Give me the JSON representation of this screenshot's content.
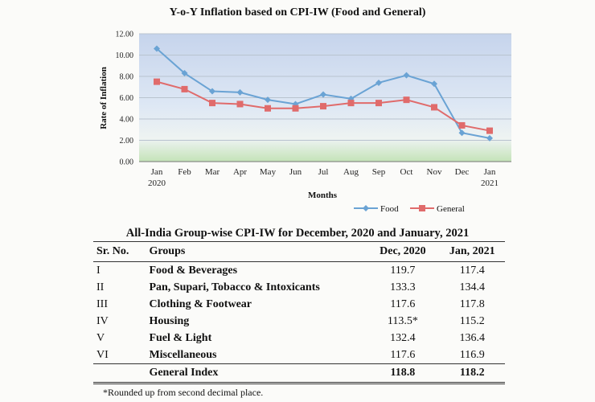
{
  "chart_data": {
    "type": "line",
    "title": "Y-o-Y Inflation based on CPI-IW (Food and General)",
    "xlabel": "Months",
    "ylabel": "Rate of Inflation",
    "categories": [
      "Jan\n2020",
      "Feb",
      "Mar",
      "Apr",
      "May",
      "Jun",
      "Jul",
      "Aug",
      "Sep",
      "Oct",
      "Nov",
      "Dec",
      "Jan\n2021"
    ],
    "ylim": [
      0,
      12
    ],
    "yticks": [
      "0.00",
      "2.00",
      "4.00",
      "6.00",
      "8.00",
      "10.00",
      "12.00"
    ],
    "series": [
      {
        "name": "Food",
        "color": "#6aa3d4",
        "marker": "diamond",
        "values": [
          10.6,
          8.3,
          6.6,
          6.5,
          5.8,
          5.4,
          6.3,
          5.9,
          7.4,
          8.1,
          7.3,
          2.7,
          2.2
        ]
      },
      {
        "name": "General",
        "color": "#e06b6b",
        "marker": "square",
        "values": [
          7.5,
          6.8,
          5.5,
          5.4,
          5.0,
          5.0,
          5.2,
          5.5,
          5.5,
          5.8,
          5.1,
          3.4,
          2.9
        ]
      }
    ],
    "legend_position": "bottom-right"
  },
  "table": {
    "title": "All-India Group-wise CPI-IW for December, 2020 and January, 2021",
    "headers": {
      "sr": "Sr. No.",
      "group": "Groups",
      "dec": "Dec, 2020",
      "jan": "Jan, 2021"
    },
    "rows": [
      {
        "sr": "I",
        "group": "Food & Beverages",
        "dec": "119.7",
        "jan": "117.4"
      },
      {
        "sr": "II",
        "group": "Pan, Supari, Tobacco & Intoxicants",
        "dec": "133.3",
        "jan": "134.4"
      },
      {
        "sr": "III",
        "group": "Clothing & Footwear",
        "dec": "117.6",
        "jan": "117.8"
      },
      {
        "sr": "IV",
        "group": "Housing",
        "dec": "113.5*",
        "jan": "115.2"
      },
      {
        "sr": "V",
        "group": "Fuel & Light",
        "dec": "132.4",
        "jan": "136.4"
      },
      {
        "sr": "VI",
        "group": "Miscellaneous",
        "dec": "117.6",
        "jan": "116.9"
      }
    ],
    "total": {
      "label": "General Index",
      "dec": "118.8",
      "jan": "118.2"
    },
    "footnote": "*Rounded up from second decimal place."
  }
}
